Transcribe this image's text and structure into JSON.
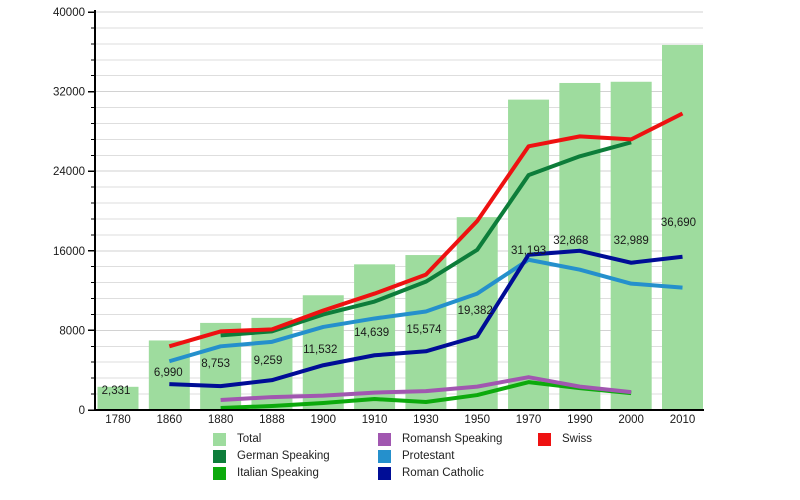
{
  "chart_data": {
    "type": "bar+line",
    "title": "",
    "x_labels": [
      "1780",
      "1860",
      "1880",
      "1888",
      "1900",
      "1910",
      "1930",
      "1950",
      "1970",
      "1990",
      "2000",
      "2010"
    ],
    "y_axis": {
      "min": 0,
      "max": 40000,
      "major_ticks": [
        0,
        8000,
        16000,
        24000,
        32000,
        40000
      ],
      "tick_labels": [
        "0",
        "8000",
        "16000",
        "24000",
        "32000",
        "40000"
      ],
      "minor_step": 1600,
      "grid": true
    },
    "total": {
      "name": "Total",
      "color": "#9edc9e",
      "values": [
        2331,
        6990,
        8753,
        9259,
        11532,
        14639,
        15574,
        19382,
        31193,
        32868,
        32989,
        36690
      ],
      "value_labels": [
        "2,331",
        "6,990",
        "8,753",
        "9,259",
        "11,532",
        "14,639",
        "15,574",
        "19,382",
        "31,193",
        "32,868",
        "32,989",
        "36,690"
      ]
    },
    "series": [
      {
        "name": "Italian Speaking",
        "color": "#0caa0c",
        "values": [
          null,
          null,
          200,
          400,
          700,
          1100,
          800,
          1500,
          2800,
          2200,
          1700,
          null
        ]
      },
      {
        "name": "Romansh Speaking",
        "color": "#a157b0",
        "values": [
          null,
          null,
          1000,
          1300,
          1450,
          1750,
          1900,
          2350,
          3300,
          2350,
          1800,
          null
        ]
      },
      {
        "name": "Protestant",
        "color": "#2590cc",
        "values": [
          null,
          4900,
          6400,
          6850,
          8350,
          9200,
          9900,
          11700,
          15100,
          14100,
          12700,
          12300
        ]
      },
      {
        "name": "Roman Catholic",
        "color": "#000d96",
        "values": [
          null,
          2600,
          2400,
          3000,
          4500,
          5500,
          5900,
          7400,
          15600,
          16000,
          14800,
          15400
        ]
      },
      {
        "name": "German Speaking",
        "color": "#0d7d3a",
        "values": [
          null,
          null,
          7500,
          7900,
          9600,
          10900,
          12900,
          16100,
          23600,
          25500,
          26900,
          null
        ]
      },
      {
        "name": "Swiss",
        "color": "#ee1111",
        "values": [
          null,
          6400,
          7900,
          8100,
          10000,
          11700,
          13600,
          19000,
          26500,
          27500,
          27200,
          29800
        ]
      }
    ],
    "legend": [
      {
        "label": "Total",
        "color": "#9edc9e"
      },
      {
        "label": "German Speaking",
        "color": "#0d7d3a"
      },
      {
        "label": "Italian Speaking",
        "color": "#0caa0c"
      },
      {
        "label": "Romansh Speaking",
        "color": "#a157b0"
      },
      {
        "label": "Protestant",
        "color": "#2590cc"
      },
      {
        "label": "Roman Catholic",
        "color": "#000d96"
      },
      {
        "label": "Swiss",
        "color": "#ee1111"
      }
    ],
    "legend_position": "bottom"
  }
}
